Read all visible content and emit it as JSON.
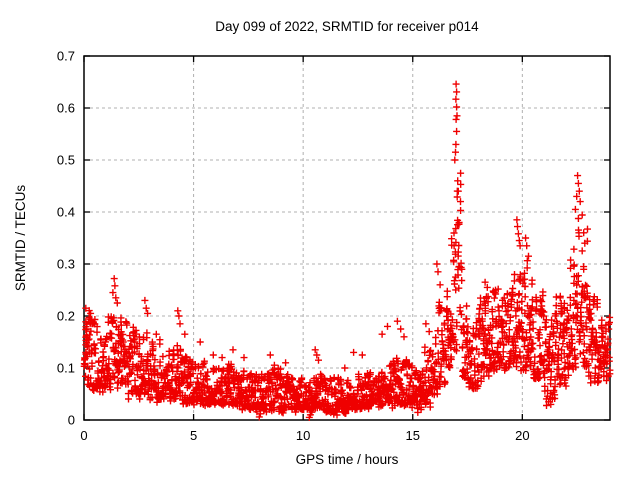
{
  "chart_data": {
    "type": "scatter",
    "title": "Day 099 of 2022, SRMTID for receiver p014",
    "xlabel": "GPS time / hours",
    "ylabel": "SRMTID / TECUs",
    "series_name": "SRMTID",
    "xlim": [
      0,
      24
    ],
    "ylim": [
      0,
      0.7
    ],
    "xticks": [
      [
        0,
        "0"
      ],
      [
        5,
        "5"
      ],
      [
        10,
        "10"
      ],
      [
        15,
        "15"
      ],
      [
        20,
        "20"
      ]
    ],
    "yticks": [
      [
        0,
        "0"
      ],
      [
        0.1,
        "0.1"
      ],
      [
        0.2,
        "0.2"
      ],
      [
        0.3,
        "0.3"
      ],
      [
        0.4,
        "0.4"
      ],
      [
        0.5,
        "0.5"
      ],
      [
        0.6,
        "0.6"
      ],
      [
        0.7,
        "0.7"
      ]
    ],
    "grid": true,
    "legend_position": "none",
    "marker": "plus",
    "colors": {
      "points": "#ef0000",
      "grid": "#b0b0b0",
      "axis": "#000000",
      "background": "#ffffff"
    },
    "seed": 42,
    "points_per_hour": 110,
    "bias_exponent": 1.55,
    "band_bins": [
      [
        0.0,
        0.5,
        0.06,
        0.21
      ],
      [
        0.5,
        0.5,
        0.06,
        0.17
      ],
      [
        1.0,
        0.5,
        0.06,
        0.2
      ],
      [
        1.5,
        0.5,
        0.07,
        0.19
      ],
      [
        2.0,
        0.5,
        0.05,
        0.17
      ],
      [
        2.5,
        0.5,
        0.05,
        0.18
      ],
      [
        3.0,
        0.5,
        0.04,
        0.15
      ],
      [
        3.5,
        0.5,
        0.04,
        0.13
      ],
      [
        4.0,
        0.5,
        0.04,
        0.15
      ],
      [
        4.5,
        0.5,
        0.03,
        0.12
      ],
      [
        5.0,
        0.5,
        0.03,
        0.11
      ],
      [
        5.5,
        0.5,
        0.03,
        0.1
      ],
      [
        6.0,
        0.5,
        0.03,
        0.1
      ],
      [
        6.5,
        0.5,
        0.03,
        0.11
      ],
      [
        7.0,
        0.5,
        0.02,
        0.1
      ],
      [
        7.5,
        0.5,
        0.02,
        0.09
      ],
      [
        8.0,
        0.5,
        0.02,
        0.09
      ],
      [
        8.5,
        0.5,
        0.02,
        0.1
      ],
      [
        9.0,
        0.5,
        0.02,
        0.09
      ],
      [
        9.5,
        0.5,
        0.02,
        0.08
      ],
      [
        10.0,
        0.5,
        0.02,
        0.08
      ],
      [
        10.5,
        0.5,
        0.02,
        0.09
      ],
      [
        11.0,
        0.5,
        0.015,
        0.08
      ],
      [
        11.5,
        0.5,
        0.015,
        0.08
      ],
      [
        12.0,
        0.5,
        0.02,
        0.08
      ],
      [
        12.5,
        0.5,
        0.02,
        0.09
      ],
      [
        13.0,
        0.5,
        0.03,
        0.09
      ],
      [
        13.5,
        0.5,
        0.03,
        0.11
      ],
      [
        14.0,
        0.5,
        0.03,
        0.12
      ],
      [
        14.5,
        0.5,
        0.03,
        0.12
      ],
      [
        15.0,
        0.5,
        0.02,
        0.1
      ],
      [
        15.5,
        0.5,
        0.03,
        0.14
      ],
      [
        16.0,
        0.5,
        0.06,
        0.22
      ],
      [
        16.5,
        0.25,
        0.1,
        0.26
      ],
      [
        16.75,
        0.25,
        0.12,
        0.4
      ],
      [
        17.0,
        0.25,
        0.18,
        0.48
      ],
      [
        17.25,
        0.25,
        0.08,
        0.22
      ],
      [
        17.5,
        0.5,
        0.06,
        0.18
      ],
      [
        18.0,
        0.5,
        0.08,
        0.24
      ],
      [
        18.5,
        0.5,
        0.09,
        0.26
      ],
      [
        19.0,
        0.5,
        0.1,
        0.25
      ],
      [
        19.5,
        0.5,
        0.11,
        0.28
      ],
      [
        20.0,
        0.5,
        0.1,
        0.3
      ],
      [
        20.5,
        0.5,
        0.08,
        0.24
      ],
      [
        21.0,
        0.5,
        0.04,
        0.18
      ],
      [
        21.5,
        0.5,
        0.07,
        0.24
      ],
      [
        22.0,
        0.5,
        0.1,
        0.33
      ],
      [
        22.5,
        0.25,
        0.15,
        0.43
      ],
      [
        22.75,
        0.25,
        0.1,
        0.35
      ],
      [
        23.0,
        0.5,
        0.08,
        0.24
      ],
      [
        23.5,
        0.5,
        0.08,
        0.2
      ]
    ],
    "outliers": [
      [
        0.08,
        0.215
      ],
      [
        0.3,
        0.205
      ],
      [
        1.32,
        0.245
      ],
      [
        1.38,
        0.272
      ],
      [
        1.41,
        0.258
      ],
      [
        1.45,
        0.235
      ],
      [
        1.52,
        0.225
      ],
      [
        2.78,
        0.23
      ],
      [
        2.84,
        0.215
      ],
      [
        2.9,
        0.205
      ],
      [
        3.3,
        0.165
      ],
      [
        4.28,
        0.21
      ],
      [
        4.33,
        0.2
      ],
      [
        4.38,
        0.185
      ],
      [
        4.6,
        0.165
      ],
      [
        5.3,
        0.15
      ],
      [
        5.9,
        0.125
      ],
      [
        6.3,
        0.12
      ],
      [
        6.8,
        0.135
      ],
      [
        7.3,
        0.12
      ],
      [
        8.0,
        0.006
      ],
      [
        8.05,
        0.012
      ],
      [
        8.5,
        0.125
      ],
      [
        9.2,
        0.11
      ],
      [
        10.28,
        0.005
      ],
      [
        10.33,
        0.01
      ],
      [
        10.4,
        0.015
      ],
      [
        10.55,
        0.135
      ],
      [
        10.62,
        0.125
      ],
      [
        10.7,
        0.115
      ],
      [
        11.9,
        0.1
      ],
      [
        12.3,
        0.13
      ],
      [
        12.7,
        0.125
      ],
      [
        13.6,
        0.165
      ],
      [
        13.85,
        0.18
      ],
      [
        14.3,
        0.19
      ],
      [
        14.45,
        0.175
      ],
      [
        14.6,
        0.16
      ],
      [
        15.6,
        0.185
      ],
      [
        15.75,
        0.17
      ],
      [
        16.1,
        0.3
      ],
      [
        16.15,
        0.285
      ],
      [
        16.25,
        0.26
      ],
      [
        16.92,
        0.5
      ],
      [
        16.95,
        0.515
      ],
      [
        16.97,
        0.53
      ],
      [
        17.0,
        0.555
      ],
      [
        16.98,
        0.578
      ],
      [
        17.02,
        0.585
      ],
      [
        17.0,
        0.602
      ],
      [
        16.97,
        0.617
      ],
      [
        17.0,
        0.631
      ],
      [
        16.98,
        0.646
      ],
      [
        17.05,
        0.46
      ],
      [
        17.08,
        0.44
      ],
      [
        18.3,
        0.265
      ],
      [
        18.4,
        0.255
      ],
      [
        19.75,
        0.385
      ],
      [
        19.78,
        0.372
      ],
      [
        19.82,
        0.358
      ],
      [
        19.86,
        0.345
      ],
      [
        19.9,
        0.335
      ],
      [
        20.15,
        0.35
      ],
      [
        20.2,
        0.335
      ],
      [
        20.28,
        0.315
      ],
      [
        21.2,
        0.035
      ],
      [
        21.3,
        0.03
      ],
      [
        22.42,
        0.405
      ],
      [
        22.48,
        0.43
      ],
      [
        22.52,
        0.47
      ],
      [
        22.56,
        0.455
      ],
      [
        22.6,
        0.44
      ],
      [
        22.64,
        0.42
      ],
      [
        22.8,
        0.36
      ],
      [
        22.85,
        0.34
      ]
    ]
  }
}
